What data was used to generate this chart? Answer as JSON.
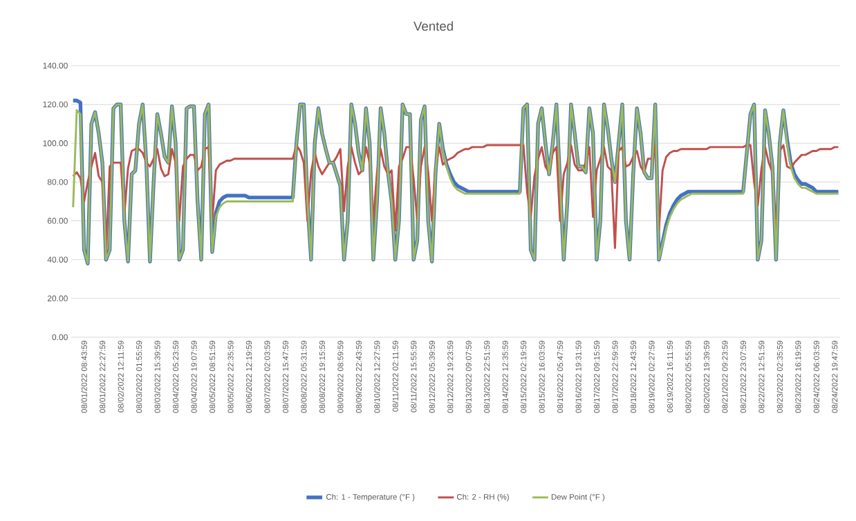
{
  "chart_data": {
    "type": "line",
    "title": "Vented",
    "categories": [
      null,
      null,
      null,
      "08/01/2022 08:43:59",
      null,
      null,
      null,
      null,
      "08/01/2022 22:27:59",
      null,
      null,
      null,
      null,
      "08/02/2022 12:11:59",
      null,
      null,
      null,
      null,
      "08/03/2022 01:55:59",
      null,
      null,
      null,
      null,
      "08/03/2022 15:39:59",
      null,
      null,
      null,
      null,
      "08/04/2022 05:23:59",
      null,
      null,
      null,
      null,
      "08/04/2022 19:07:59",
      null,
      null,
      null,
      null,
      "08/05/2022 08:51:59",
      null,
      null,
      null,
      null,
      "08/05/2022 22:35:59",
      null,
      null,
      null,
      null,
      "08/06/2022 12:19:59",
      null,
      null,
      null,
      null,
      "08/07/2022 02:03:59",
      null,
      null,
      null,
      null,
      "08/07/2022 15:47:59",
      null,
      null,
      null,
      null,
      "08/08/2022 05:31:59",
      null,
      null,
      null,
      null,
      "08/08/2022 19:15:59",
      null,
      null,
      null,
      null,
      "08/09/2022 08:59:59",
      null,
      null,
      null,
      null,
      "08/09/2022 22:43:59",
      null,
      null,
      null,
      null,
      "08/10/2022 12:27:59",
      null,
      null,
      null,
      null,
      "08/11/2022 02:11:59",
      null,
      null,
      null,
      null,
      "08/11/2022 15:55:59",
      null,
      null,
      null,
      null,
      "08/12/2022 05:39:59",
      null,
      null,
      null,
      null,
      "08/12/2022 19:23:59",
      null,
      null,
      null,
      null,
      "08/13/2022 09:07:59",
      null,
      null,
      null,
      null,
      "08/13/2022 22:51:59",
      null,
      null,
      null,
      null,
      "08/14/2022 12:35:59",
      null,
      null,
      null,
      null,
      "08/15/2022 02:19:59",
      null,
      null,
      null,
      null,
      "08/15/2022 16:03:59",
      null,
      null,
      null,
      null,
      "08/16/2022 05:47:59",
      null,
      null,
      null,
      null,
      "08/16/2022 19:31:59",
      null,
      null,
      null,
      null,
      "08/17/2022 09:15:59",
      null,
      null,
      null,
      null,
      "08/17/2022 22:59:59",
      null,
      null,
      null,
      null,
      "08/18/2022 12:43:59",
      null,
      null,
      null,
      null,
      "08/19/2022 02:27:59",
      null,
      null,
      null,
      null,
      "08/19/2022 16:11:59",
      null,
      null,
      null,
      null,
      "08/20/2022 05:55:59",
      null,
      null,
      null,
      null,
      "08/20/2022 19:39:59",
      null,
      null,
      null,
      null,
      "08/21/2022 09:23:59",
      null,
      null,
      null,
      null,
      "08/21/2022 23:07:59",
      null,
      null,
      null,
      null,
      "08/22/2022 12:51:59",
      null,
      null,
      null,
      null,
      "08/23/2022 02:35:59",
      null,
      null,
      null,
      null,
      "08/23/2022 16:19:59",
      null,
      null,
      null,
      null,
      "08/24/2022 06:03:59",
      null,
      null,
      null,
      null,
      "08/24/2022 19:47:59",
      null
    ],
    "series": [
      {
        "name": "Ch: 1 - Temperature (°F )",
        "color": "#4472c4",
        "values": [
          122,
          122,
          121,
          45,
          38,
          110,
          116,
          105,
          90,
          40,
          45,
          118,
          120,
          120,
          60,
          39,
          84,
          86,
          110,
          120,
          90,
          39,
          80,
          115,
          105,
          93,
          90,
          119,
          100,
          40,
          45,
          118,
          119,
          119,
          70,
          40,
          115,
          120,
          44,
          64,
          70,
          72,
          73,
          73,
          73,
          73,
          73,
          73,
          72,
          72,
          72,
          72,
          72,
          72,
          72,
          72,
          72,
          72,
          72,
          72,
          72,
          100,
          120,
          120,
          70,
          40,
          100,
          118,
          105,
          97,
          90,
          90,
          84,
          78,
          40,
          60,
          120,
          110,
          95,
          86,
          118,
          100,
          40,
          70,
          118,
          105,
          85,
          70,
          40,
          60,
          120,
          115,
          115,
          40,
          50,
          112,
          119,
          60,
          39,
          85,
          110,
          97,
          89,
          84,
          80,
          78,
          77,
          76,
          75,
          75,
          75,
          75,
          75,
          75,
          75,
          75,
          75,
          75,
          75,
          75,
          75,
          75,
          75,
          118,
          120,
          45,
          40,
          110,
          118,
          100,
          84,
          100,
          120,
          80,
          40,
          70,
          120,
          105,
          88,
          88,
          85,
          118,
          105,
          40,
          60,
          120,
          108,
          92,
          80,
          100,
          120,
          60,
          40,
          85,
          118,
          105,
          85,
          82,
          82,
          120,
          40,
          49,
          58,
          64,
          68,
          71,
          73,
          74,
          75,
          75,
          75,
          75,
          75,
          75,
          75,
          75,
          75,
          75,
          75,
          75,
          75,
          75,
          75,
          75,
          95,
          115,
          120,
          40,
          50,
          117,
          105,
          88,
          40,
          100,
          117,
          102,
          90,
          84,
          81,
          79,
          79,
          78,
          77,
          75,
          75,
          75,
          75,
          75,
          75,
          75
        ]
      },
      {
        "name": "Ch: 2 - RH (%)",
        "color": "#c0504d",
        "values": [
          83,
          85,
          82,
          70,
          80,
          88,
          95,
          83,
          80,
          42,
          88,
          90,
          90,
          90,
          63,
          87,
          96,
          97,
          97,
          95,
          90,
          88,
          92,
          97,
          87,
          83,
          84,
          97,
          90,
          60,
          88,
          92,
          94,
          94,
          86,
          88,
          97,
          98,
          60,
          86,
          89,
          90,
          91,
          91,
          92,
          92,
          92,
          92,
          92,
          92,
          92,
          92,
          92,
          92,
          92,
          92,
          92,
          92,
          92,
          92,
          92,
          99,
          96,
          90,
          60,
          85,
          95,
          88,
          84,
          87,
          90,
          90,
          93,
          97,
          65,
          88,
          98,
          90,
          84,
          86,
          98,
          90,
          60,
          85,
          97,
          88,
          84,
          86,
          55,
          88,
          92,
          98,
          98,
          82,
          60,
          88,
          98,
          85,
          60,
          88,
          98,
          89,
          91,
          92,
          93,
          95,
          96,
          97,
          97,
          98,
          98,
          98,
          98,
          99,
          99,
          99,
          99,
          99,
          99,
          99,
          99,
          99,
          99,
          99,
          75,
          62,
          83,
          92,
          98,
          88,
          85,
          95,
          98,
          60,
          84,
          90,
          99,
          89,
          86,
          86,
          90,
          98,
          62,
          86,
          92,
          98,
          88,
          86,
          46,
          96,
          98,
          88,
          89,
          93,
          96,
          88,
          85,
          92,
          92,
          99,
          55,
          86,
          93,
          95,
          96,
          96,
          97,
          97,
          97,
          97,
          97,
          97,
          97,
          97,
          98,
          98,
          98,
          98,
          98,
          98,
          98,
          98,
          98,
          98,
          99,
          99,
          80,
          68,
          87,
          98,
          90,
          85,
          50,
          96,
          99,
          88,
          87,
          90,
          92,
          94,
          94,
          95,
          96,
          96,
          97,
          97,
          97,
          97,
          98,
          98
        ]
      },
      {
        "name": "Dew Point (°F )",
        "color": "#9bbb59",
        "values": [
          67,
          117,
          115,
          45,
          38,
          110,
          116,
          105,
          90,
          40,
          45,
          118,
          120,
          120,
          60,
          39,
          84,
          86,
          110,
          120,
          90,
          39,
          80,
          115,
          105,
          93,
          90,
          119,
          100,
          40,
          45,
          118,
          119,
          119,
          70,
          40,
          115,
          120,
          44,
          62,
          67,
          69,
          70,
          70,
          70,
          70,
          70,
          70,
          70,
          70,
          70,
          70,
          70,
          70,
          70,
          70,
          70,
          70,
          70,
          70,
          70,
          100,
          120,
          120,
          70,
          40,
          100,
          118,
          105,
          97,
          90,
          90,
          84,
          78,
          40,
          60,
          120,
          110,
          95,
          86,
          118,
          100,
          40,
          70,
          118,
          105,
          85,
          70,
          40,
          60,
          120,
          115,
          115,
          40,
          50,
          112,
          119,
          60,
          39,
          85,
          110,
          96,
          88,
          82,
          78,
          76,
          75,
          74,
          74,
          74,
          74,
          74,
          74,
          74,
          74,
          74,
          74,
          74,
          74,
          74,
          74,
          74,
          74,
          118,
          120,
          45,
          40,
          110,
          118,
          100,
          84,
          100,
          120,
          80,
          40,
          70,
          120,
          105,
          88,
          88,
          85,
          118,
          105,
          40,
          60,
          120,
          108,
          92,
          80,
          100,
          120,
          60,
          40,
          85,
          118,
          105,
          85,
          82,
          82,
          120,
          40,
          48,
          56,
          62,
          66,
          69,
          71,
          72,
          73,
          74,
          74,
          74,
          74,
          74,
          74,
          74,
          74,
          74,
          74,
          74,
          74,
          74,
          74,
          74,
          95,
          115,
          120,
          40,
          50,
          117,
          105,
          88,
          40,
          100,
          117,
          100,
          88,
          82,
          79,
          77,
          77,
          76,
          75,
          74,
          74,
          74,
          74,
          74,
          74,
          74
        ]
      }
    ],
    "ylim": [
      0,
      140
    ],
    "yticks": [
      {
        "value": 0,
        "label": "0.00"
      },
      {
        "value": 20,
        "label": "20.00"
      },
      {
        "value": 40,
        "label": "40.00"
      },
      {
        "value": 60,
        "label": "60.00"
      },
      {
        "value": 80,
        "label": "80.00"
      },
      {
        "value": 100,
        "label": "100.00"
      },
      {
        "value": 120,
        "label": "120.00"
      },
      {
        "value": 140,
        "label": "140.00"
      }
    ],
    "grid": "y",
    "legend": "bottom",
    "marker": "none",
    "line_style": "solid"
  }
}
